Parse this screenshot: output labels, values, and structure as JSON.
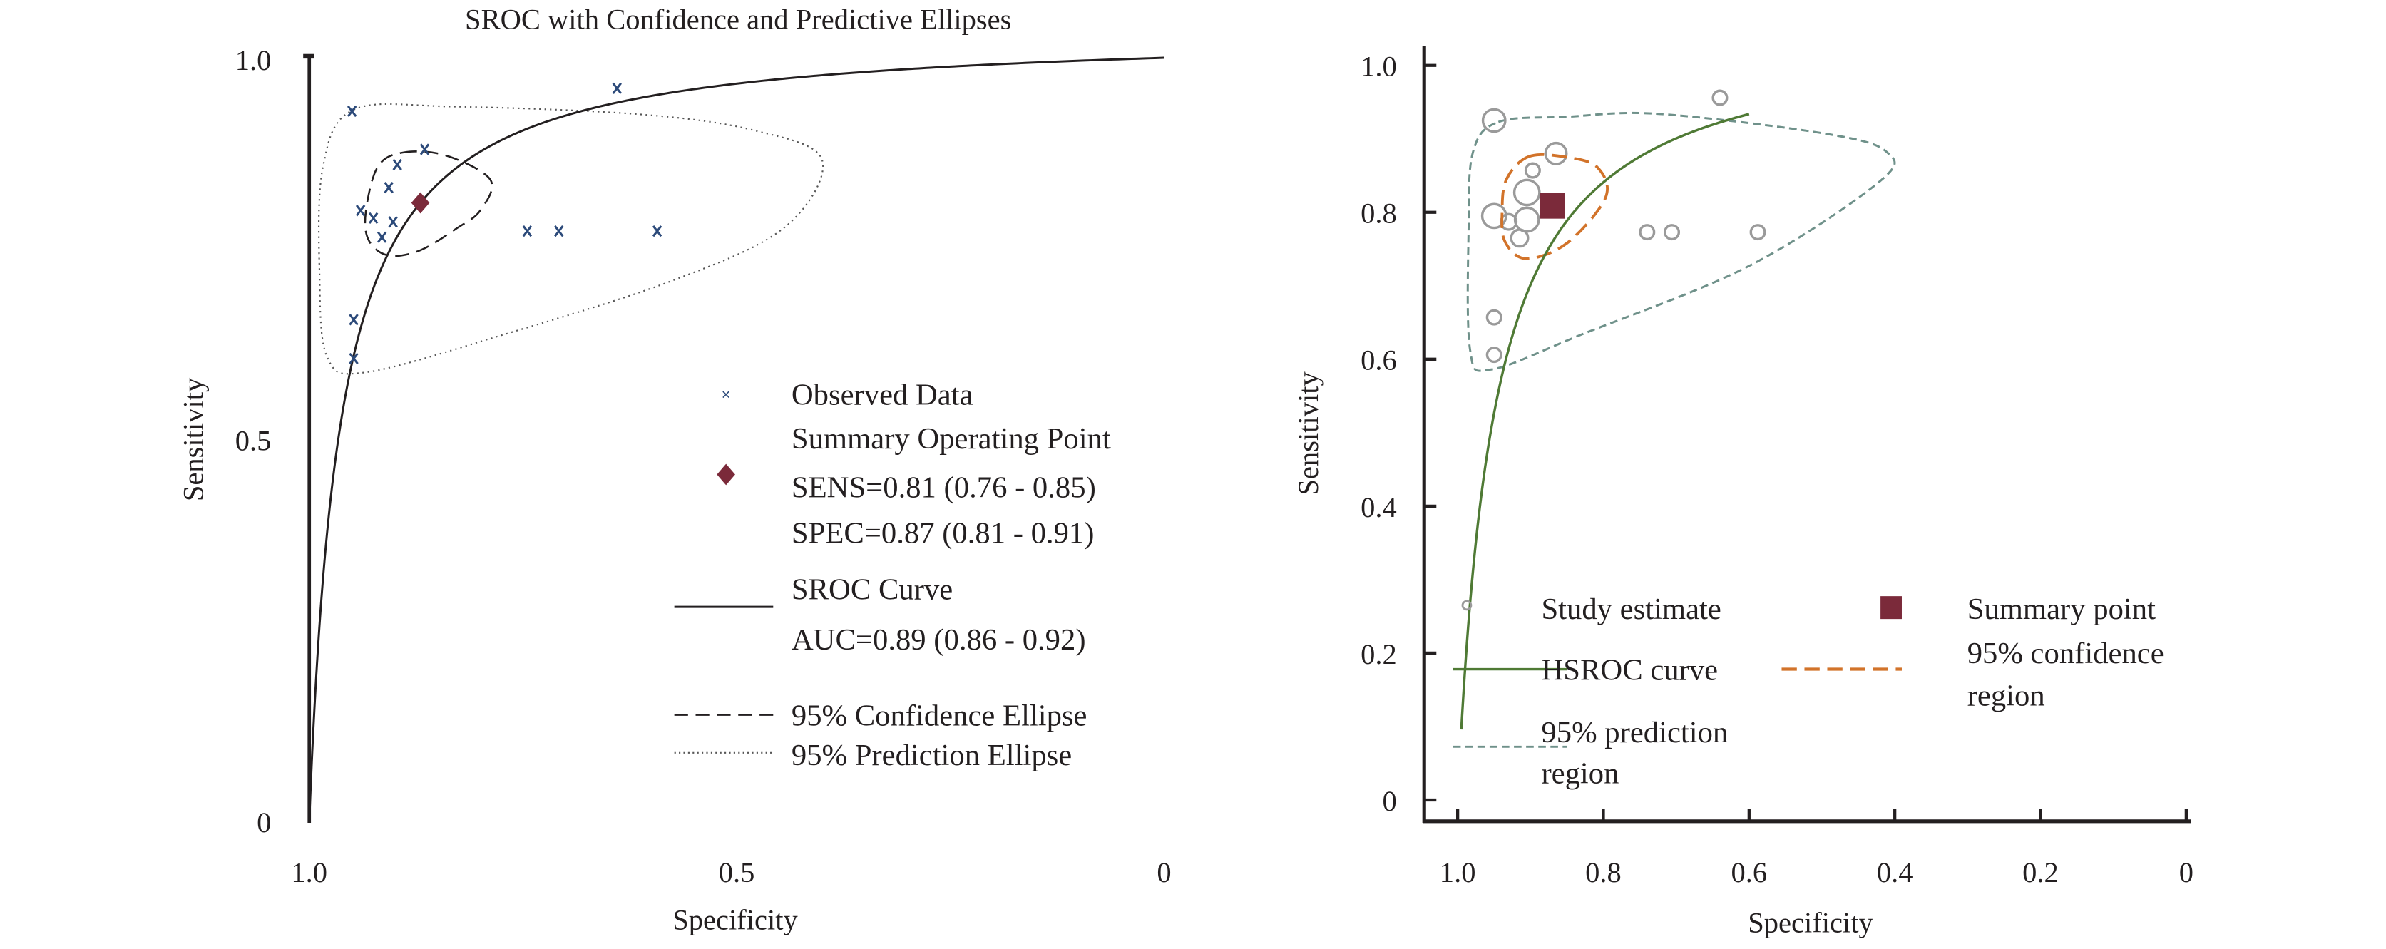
{
  "chart_data": [
    {
      "type": "scatter",
      "title": "SROC with Confidence and Predictive Ellipses",
      "xlabel": "Specificity",
      "ylabel": "Sensitivity",
      "xlim": [
        1.0,
        0
      ],
      "ylim": [
        0,
        1.0
      ],
      "x_ticks": [
        "1.0",
        "0.5",
        "0"
      ],
      "y_ticks": [
        "0",
        "0.5",
        "1.0"
      ],
      "grid": false,
      "legend_position": "bottom-right",
      "colors": {
        "observed": "#2c4a7a",
        "summary": "#7b2a3a",
        "curve": "#231f20"
      },
      "observed": [
        {
          "spec": 0.95,
          "sens": 0.93
        },
        {
          "spec": 0.64,
          "sens": 0.96
        },
        {
          "spec": 0.865,
          "sens": 0.88
        },
        {
          "spec": 0.897,
          "sens": 0.86
        },
        {
          "spec": 0.907,
          "sens": 0.83
        },
        {
          "spec": 0.94,
          "sens": 0.8
        },
        {
          "spec": 0.925,
          "sens": 0.79
        },
        {
          "spec": 0.902,
          "sens": 0.785
        },
        {
          "spec": 0.915,
          "sens": 0.765
        },
        {
          "spec": 0.745,
          "sens": 0.773
        },
        {
          "spec": 0.708,
          "sens": 0.773
        },
        {
          "spec": 0.593,
          "sens": 0.773
        },
        {
          "spec": 0.948,
          "sens": 0.657
        },
        {
          "spec": 0.948,
          "sens": 0.606
        }
      ],
      "summary_point": {
        "spec": 0.87,
        "sens": 0.81
      },
      "confidence_ellipse": [
        [
          0.89,
          0.876
        ],
        [
          0.84,
          0.872
        ],
        [
          0.788,
          0.84
        ],
        [
          0.8,
          0.8
        ],
        [
          0.827,
          0.777
        ],
        [
          0.87,
          0.748
        ],
        [
          0.907,
          0.741
        ],
        [
          0.93,
          0.76
        ],
        [
          0.934,
          0.797
        ],
        [
          0.92,
          0.857
        ]
      ],
      "prediction_ellipse": [
        [
          0.948,
          0.932
        ],
        [
          0.83,
          0.936
        ],
        [
          0.614,
          0.926
        ],
        [
          0.48,
          0.905
        ],
        [
          0.4,
          0.866
        ],
        [
          0.445,
          0.777
        ],
        [
          0.578,
          0.707
        ],
        [
          0.774,
          0.637
        ],
        [
          0.934,
          0.588
        ],
        [
          0.979,
          0.608
        ],
        [
          0.988,
          0.717
        ],
        [
          0.984,
          0.857
        ]
      ],
      "legend": {
        "observed": "Observed Data",
        "summary": "Summary Operating Point",
        "sens": "SENS=0.81 (0.76 - 0.85)",
        "spec": "SPEC=0.87 (0.81 - 0.91)",
        "curve": "SROC Curve",
        "auc": "AUC=0.89 (0.86 - 0.92)",
        "conf": "95% Confidence Ellipse",
        "pred": "95% Prediction Ellipse"
      }
    },
    {
      "type": "scatter",
      "title": "",
      "xlabel": "Specificity",
      "ylabel": "Sensitivity",
      "xlim": [
        1.0,
        0
      ],
      "ylim": [
        0,
        1.0
      ],
      "x_ticks": [
        "1.0",
        "0.8",
        "0.6",
        "0.4",
        "0.2",
        "0"
      ],
      "y_ticks": [
        "0",
        "0.2",
        "0.4",
        "0.6",
        "0.8",
        "1.0"
      ],
      "grid": false,
      "legend_position": "bottom",
      "colors": {
        "study": "#9a9a9a",
        "summary": "#7b2a3a",
        "curve": "#4f7a35",
        "conf": "#d2732a",
        "pred": "#6f918a"
      },
      "studies": [
        {
          "spec": 0.95,
          "sens": 0.925,
          "weight": 1.6
        },
        {
          "spec": 0.64,
          "sens": 0.956,
          "weight": 1.0
        },
        {
          "spec": 0.865,
          "sens": 0.88,
          "weight": 1.5
        },
        {
          "spec": 0.897,
          "sens": 0.857,
          "weight": 1.0
        },
        {
          "spec": 0.905,
          "sens": 0.827,
          "weight": 1.8
        },
        {
          "spec": 0.95,
          "sens": 0.795,
          "weight": 1.7
        },
        {
          "spec": 0.93,
          "sens": 0.787,
          "weight": 1.1
        },
        {
          "spec": 0.905,
          "sens": 0.79,
          "weight": 1.7
        },
        {
          "spec": 0.915,
          "sens": 0.765,
          "weight": 1.2
        },
        {
          "spec": 0.74,
          "sens": 0.773,
          "weight": 1.0
        },
        {
          "spec": 0.706,
          "sens": 0.773,
          "weight": 1.0
        },
        {
          "spec": 0.588,
          "sens": 0.773,
          "weight": 1.0
        },
        {
          "spec": 0.95,
          "sens": 0.657,
          "weight": 1.0
        },
        {
          "spec": 0.95,
          "sens": 0.606,
          "weight": 1.0
        }
      ],
      "summary_point": {
        "spec": 0.87,
        "sens": 0.81
      },
      "curve_spec_range": [
        0.6,
        0.995
      ],
      "confidence_region": [
        [
          0.902,
          0.876
        ],
        [
          0.85,
          0.875
        ],
        [
          0.808,
          0.861
        ],
        [
          0.797,
          0.82
        ],
        [
          0.85,
          0.758
        ],
        [
          0.906,
          0.737
        ],
        [
          0.935,
          0.76
        ],
        [
          0.939,
          0.8
        ],
        [
          0.933,
          0.845
        ]
      ],
      "prediction_region": [
        [
          0.944,
          0.923
        ],
        [
          0.85,
          0.93
        ],
        [
          0.724,
          0.934
        ],
        [
          0.495,
          0.907
        ],
        [
          0.411,
          0.882
        ],
        [
          0.422,
          0.841
        ],
        [
          0.6,
          0.727
        ],
        [
          0.829,
          0.634
        ],
        [
          0.954,
          0.586
        ],
        [
          0.983,
          0.613
        ],
        [
          0.985,
          0.778
        ],
        [
          0.979,
          0.882
        ]
      ],
      "legend": {
        "study": "Study estimate",
        "summary": "Summary point",
        "curve": "HSROC curve",
        "conf_1": "95% confidence",
        "conf_2": "region",
        "pred_1": "95% prediction",
        "pred_2": "region"
      }
    }
  ]
}
